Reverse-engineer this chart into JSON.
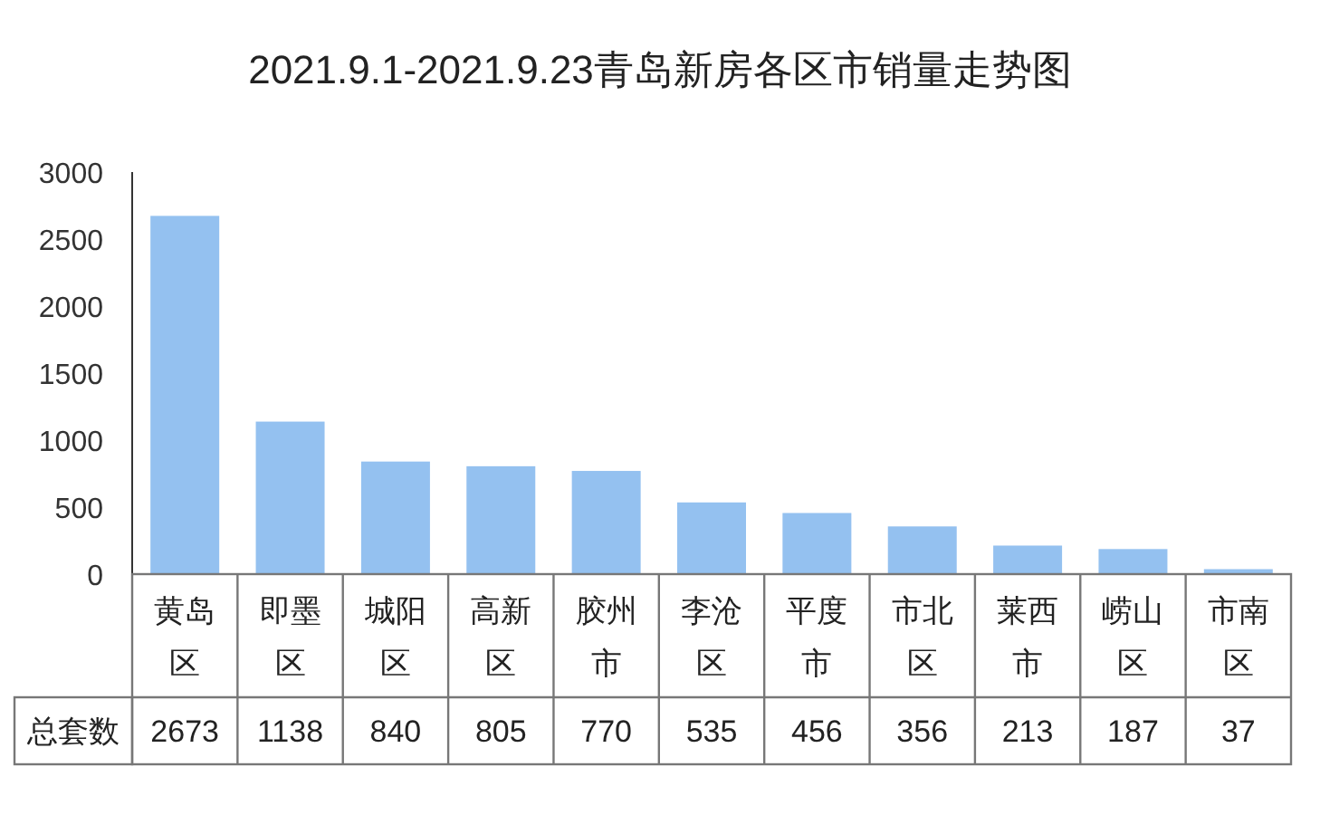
{
  "chart_data": {
    "type": "bar",
    "title": "2021.9.1-2021.9.23青岛新房各区市销量走势图",
    "categories": [
      "黄岛区",
      "即墨区",
      "城阳区",
      "高新区",
      "胶州市",
      "李沧区",
      "平度市",
      "市北区",
      "莱西市",
      "崂山区",
      "市南区"
    ],
    "series": [
      {
        "name": "总套数",
        "color": "#94c1f0",
        "values": [
          2673,
          1138,
          840,
          805,
          770,
          535,
          456,
          356,
          213,
          187,
          37
        ]
      }
    ],
    "ylim": [
      0,
      3000
    ],
    "yticks": [
      0,
      500,
      1000,
      1500,
      2000,
      2500,
      3000
    ],
    "data_labels": true,
    "grid": false
  }
}
